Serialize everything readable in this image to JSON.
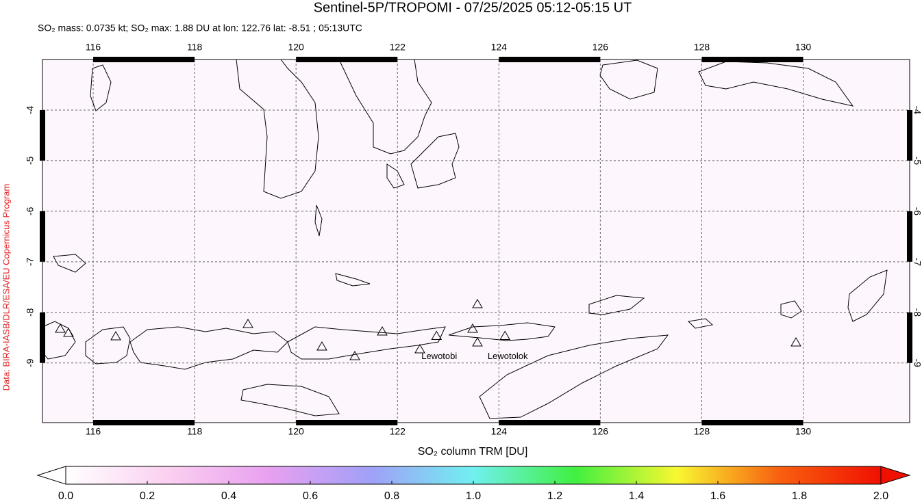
{
  "chart_data": {
    "type": "map",
    "title": "Sentinel-5P/TROPOMI - 07/25/2025 05:12-05:15 UT",
    "subtitle": "SO₂ mass: 0.0735 kt; SO₂ max: 1.88 DU at lon: 122.76 lat: -8.51 ; 05:13UTC",
    "credit": "Data: BIRA-IASB/DLR/ESA/EU Copernicus Program",
    "xlim": [
      115,
      132.1
    ],
    "ylim": [
      -10.18,
      -3.0
    ],
    "xticks": [
      116,
      118,
      120,
      122,
      124,
      126,
      128,
      130
    ],
    "yticks": [
      -4,
      -5,
      -6,
      -7,
      -8,
      -9
    ],
    "grid": true,
    "volcanoes": [
      {
        "name": "Lewotobi",
        "lon": 122.77,
        "lat": -8.47
      },
      {
        "name": "Lewotolok",
        "lon": 124.12,
        "lat": -8.47
      }
    ],
    "colorbar": {
      "label": "SO₂ column TRM [DU]",
      "lim": [
        0,
        2
      ],
      "ticks": [
        {
          "value": 0,
          "label": "0.0"
        },
        {
          "value": 0.2,
          "label": "0.2"
        },
        {
          "value": 0.4,
          "label": "0.4"
        },
        {
          "value": 0.6,
          "label": "0.6"
        },
        {
          "value": 0.8,
          "label": "0.8"
        },
        {
          "value": 1.0,
          "label": "1.0"
        },
        {
          "value": 1.2,
          "label": "1.2"
        },
        {
          "value": 1.4,
          "label": "1.4"
        },
        {
          "value": 1.6,
          "label": "1.6"
        },
        {
          "value": 1.8,
          "label": "1.8"
        },
        {
          "value": 2.0,
          "label": "2.0"
        }
      ],
      "colors": [
        "#ffffff",
        "#fbd0f0",
        "#e8a0f0",
        "#a0a0f8",
        "#70f0f0",
        "#40f040",
        "#f8f830",
        "#f86010",
        "#f01000"
      ]
    }
  }
}
